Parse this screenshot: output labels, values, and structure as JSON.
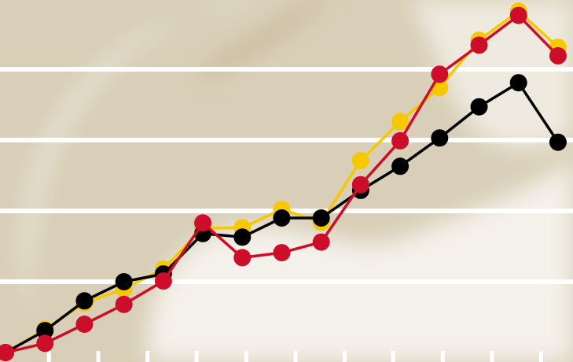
{
  "chart_data": {
    "type": "line",
    "x": [
      0,
      1,
      2,
      3,
      4,
      5,
      6,
      7,
      8,
      9,
      10,
      11,
      12,
      13,
      14
    ],
    "xlim": [
      -0.14,
      14.38
    ],
    "xticks": [
      1.1,
      2.35,
      3.6,
      4.84,
      6.1,
      7.35,
      8.59,
      9.82,
      11.08,
      12.33,
      13.57
    ],
    "ylim": [
      0,
      5
    ],
    "yticks": [
      1,
      2,
      3,
      4
    ],
    "grid": true,
    "series": [
      {
        "color": "#f5c800",
        "values": [
          0,
          0.33,
          0.7,
          0.9,
          1.18,
          1.76,
          1.76,
          2.02,
          1.84,
          2.71,
          3.26,
          3.74,
          4.41,
          4.82,
          4.31
        ]
      },
      {
        "color": "#000000",
        "values": [
          0,
          0.31,
          0.73,
          1.0,
          1.11,
          1.68,
          1.63,
          1.9,
          1.9,
          2.29,
          2.63,
          3.03,
          3.47,
          3.81,
          2.97
        ]
      },
      {
        "color": "#cc0e2a",
        "values": [
          0,
          0.13,
          0.4,
          0.68,
          1.01,
          1.83,
          1.34,
          1.41,
          1.56,
          2.37,
          2.99,
          3.93,
          4.34,
          4.76,
          4.19
        ]
      }
    ]
  }
}
